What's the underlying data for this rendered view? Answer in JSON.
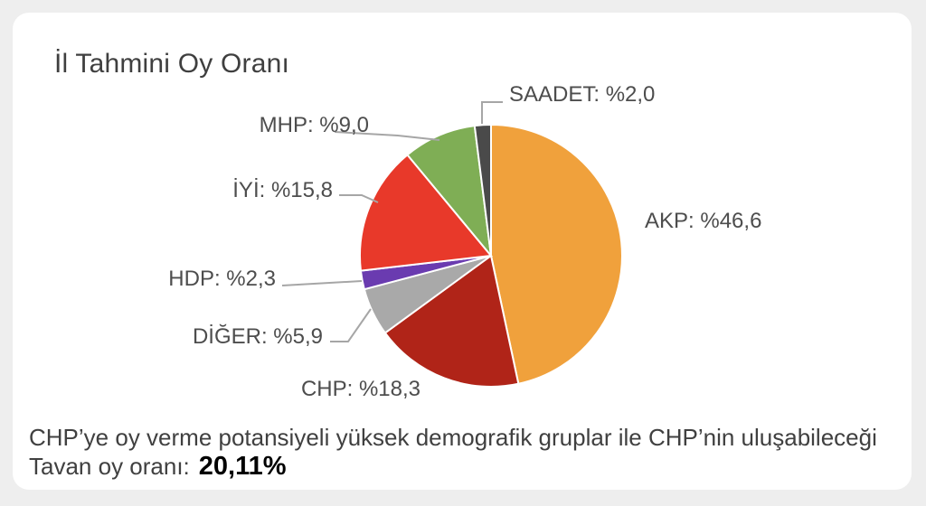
{
  "chart_data": {
    "type": "pie",
    "title": "İl Tahmini Oy Oranı",
    "slices": [
      {
        "label": "AKP: %46,6",
        "value": 46.6,
        "color": "#F0A13C"
      },
      {
        "label": "CHP: %18,3",
        "value": 18.3,
        "color": "#B02418"
      },
      {
        "label": "DİĞER: %5,9",
        "value": 5.9,
        "color": "#A9A9A9"
      },
      {
        "label": "HDP: %2,3",
        "value": 2.3,
        "color": "#6A3BB0"
      },
      {
        "label": "İYİ: %15,8",
        "value": 15.8,
        "color": "#E8392A"
      },
      {
        "label": "MHP: %9,0",
        "value": 9.0,
        "color": "#7FAE55"
      },
      {
        "label": "SAADET: %2,0",
        "value": 2.0,
        "color": "#4A4A4A"
      }
    ]
  },
  "footer": {
    "text": "CHP’ye oy verme potansiyeli yüksek demografik gruplar ile CHP’nin uluşabileceği Tavan oy oranı:",
    "value": "20,11%"
  }
}
